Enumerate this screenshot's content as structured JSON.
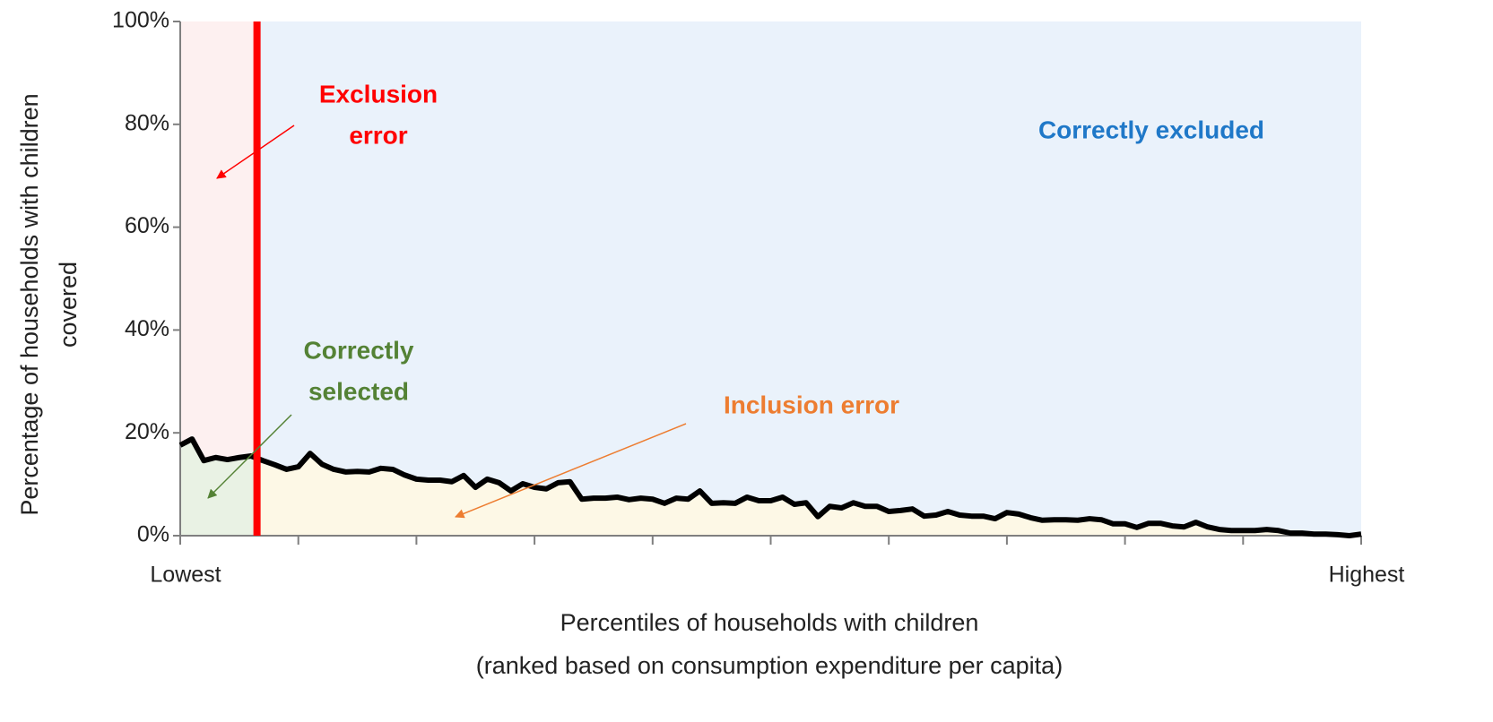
{
  "chart_data": {
    "type": "line",
    "ylabel": [
      "Percentage of households with children",
      "covered"
    ],
    "xlabel": [
      "Percentiles of households with children",
      "(ranked based on consumption expenditure per capita)"
    ],
    "x": [
      0,
      1,
      2,
      3,
      4,
      5,
      6,
      7,
      8,
      9,
      10,
      11,
      12,
      13,
      14,
      15,
      16,
      17,
      18,
      19,
      20,
      21,
      22,
      23,
      24,
      25,
      26,
      27,
      28,
      29,
      30,
      31,
      32,
      33,
      34,
      35,
      36,
      37,
      38,
      39,
      40,
      41,
      42,
      43,
      44,
      45,
      46,
      47,
      48,
      49,
      50,
      51,
      52,
      53,
      54,
      55,
      56,
      57,
      58,
      59,
      60,
      61,
      62,
      63,
      64,
      65,
      66,
      67,
      68,
      69,
      70,
      71,
      72,
      73,
      74,
      75,
      76,
      77,
      78,
      79,
      80,
      81,
      82,
      83,
      84,
      85,
      86,
      87,
      88,
      89,
      90,
      91,
      92,
      93,
      94,
      95,
      96,
      97,
      98,
      99,
      100
    ],
    "series": [
      {
        "color": "#000000",
        "values": [
          17.6,
          18.8,
          14.6,
          15.2,
          14.8,
          15.2,
          15.5,
          14.6,
          13.8,
          12.9,
          13.4,
          16.0,
          13.9,
          12.9,
          12.4,
          12.5,
          12.4,
          13.1,
          12.9,
          11.8,
          11.0,
          10.8,
          10.8,
          10.5,
          11.7,
          9.4,
          11.0,
          10.3,
          8.7,
          10.1,
          9.4,
          9.1,
          10.3,
          10.5,
          7.1,
          7.3,
          7.3,
          7.5,
          7.0,
          7.3,
          7.1,
          6.3,
          7.3,
          7.1,
          8.7,
          6.3,
          6.4,
          6.3,
          7.5,
          6.8,
          6.8,
          7.5,
          6.1,
          6.4,
          3.7,
          5.7,
          5.4,
          6.4,
          5.7,
          5.7,
          4.7,
          4.9,
          5.2,
          3.8,
          4.0,
          4.7,
          4.0,
          3.8,
          3.8,
          3.3,
          4.5,
          4.2,
          3.5,
          3.0,
          3.1,
          3.1,
          3.0,
          3.3,
          3.1,
          2.3,
          2.3,
          1.6,
          2.4,
          2.4,
          1.9,
          1.7,
          2.6,
          1.7,
          1.2,
          1.0,
          1.0,
          1.0,
          1.2,
          1.0,
          0.5,
          0.5,
          0.3,
          0.3,
          0.2,
          0,
          0.3
        ]
      }
    ],
    "cutoff": 6.5,
    "cutoff_color": "#ff0000",
    "xlim": [
      0,
      100
    ],
    "xticks": [
      {
        "value": 0,
        "label": "Lowest"
      },
      {
        "value": 10,
        "label": null
      },
      {
        "value": 20,
        "label": null
      },
      {
        "value": 30,
        "label": null
      },
      {
        "value": 40,
        "label": null
      },
      {
        "value": 50,
        "label": null
      },
      {
        "value": 60,
        "label": null
      },
      {
        "value": 70,
        "label": null
      },
      {
        "value": 80,
        "label": null
      },
      {
        "value": 90,
        "label": null
      },
      {
        "value": 100,
        "label": "Highest"
      }
    ],
    "ylim": [
      0,
      100
    ],
    "yticks": [
      {
        "value": 0,
        "label": "0%"
      },
      {
        "value": 20,
        "label": "20%"
      },
      {
        "value": 40,
        "label": "40%"
      },
      {
        "value": 60,
        "label": "60%"
      },
      {
        "value": 80,
        "label": "80%"
      },
      {
        "value": 100,
        "label": "100%"
      }
    ],
    "region_colors": {
      "exclusion": "#fdf0f0",
      "excluded": "#eaf2fb",
      "selected": "#e9f2e4",
      "inclusion": "#fdf8e6"
    },
    "annotations": [
      {
        "lines": [
          "Exclusion",
          "error"
        ],
        "color": "#ff0000"
      },
      {
        "lines": [
          "Correctly excluded"
        ],
        "color": "#1f78c8"
      },
      {
        "lines": [
          "Correctly",
          "selected"
        ],
        "color": "#548235"
      },
      {
        "lines": [
          "Inclusion error"
        ],
        "color": "#ed7d31"
      }
    ]
  }
}
